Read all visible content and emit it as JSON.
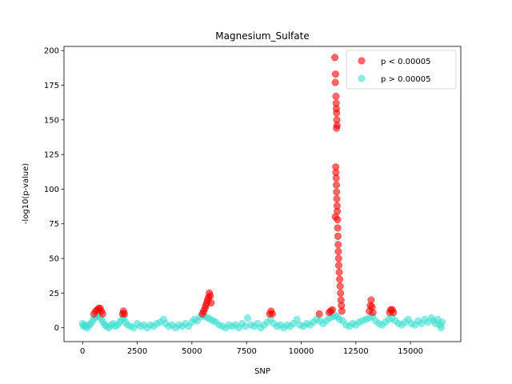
{
  "chart_data": {
    "type": "scatter",
    "title": "Magnesium_Sulfate",
    "xlabel": "SNP",
    "ylabel": "-log10(p-value)",
    "xlim": [
      -850,
      17300
    ],
    "ylim": [
      -10,
      203
    ],
    "xticks": [
      0,
      2500,
      5000,
      7500,
      10000,
      12500,
      15000
    ],
    "yticks": [
      0,
      25,
      50,
      75,
      100,
      125,
      150,
      175,
      200
    ],
    "grid": false,
    "legend_position": "upper-right",
    "colors": {
      "significant": "#ff0000",
      "nonsignificant": "#40e0d0"
    },
    "series": [
      {
        "name": "p < 0.00005",
        "color": "#ff0000",
        "points": [
          [
            520,
            10
          ],
          [
            600,
            12
          ],
          [
            680,
            13
          ],
          [
            740,
            14
          ],
          [
            800,
            14
          ],
          [
            860,
            12
          ],
          [
            920,
            10
          ],
          [
            1830,
            10
          ],
          [
            1870,
            12
          ],
          [
            1910,
            10
          ],
          [
            5480,
            10
          ],
          [
            5540,
            12
          ],
          [
            5600,
            14
          ],
          [
            5640,
            16
          ],
          [
            5680,
            18
          ],
          [
            5720,
            20
          ],
          [
            5760,
            22
          ],
          [
            5800,
            25
          ],
          [
            5840,
            23
          ],
          [
            5880,
            18
          ],
          [
            8560,
            10
          ],
          [
            8620,
            12
          ],
          [
            8680,
            10
          ],
          [
            10830,
            10
          ],
          [
            11280,
            11
          ],
          [
            11350,
            12
          ],
          [
            11420,
            13
          ],
          [
            11540,
            195
          ],
          [
            11570,
            183
          ],
          [
            11560,
            177
          ],
          [
            11590,
            167
          ],
          [
            11600,
            162
          ],
          [
            11610,
            158
          ],
          [
            11620,
            155
          ],
          [
            11630,
            150
          ],
          [
            11640,
            146
          ],
          [
            11615,
            144
          ],
          [
            11580,
            116
          ],
          [
            11590,
            112
          ],
          [
            11600,
            108
          ],
          [
            11610,
            103
          ],
          [
            11620,
            98
          ],
          [
            11630,
            93
          ],
          [
            11640,
            88
          ],
          [
            11650,
            84
          ],
          [
            11560,
            80
          ],
          [
            11660,
            78
          ],
          [
            11670,
            72
          ],
          [
            11680,
            66
          ],
          [
            11690,
            60
          ],
          [
            11700,
            55
          ],
          [
            11710,
            50
          ],
          [
            11720,
            45
          ],
          [
            11740,
            40
          ],
          [
            11760,
            35
          ],
          [
            11780,
            30
          ],
          [
            11800,
            25
          ],
          [
            11820,
            20
          ],
          [
            11840,
            16
          ],
          [
            11860,
            12
          ],
          [
            13120,
            12
          ],
          [
            13160,
            16
          ],
          [
            13200,
            20
          ],
          [
            13240,
            15
          ],
          [
            13280,
            11
          ],
          [
            14050,
            11
          ],
          [
            14100,
            13
          ],
          [
            14160,
            13
          ],
          [
            14220,
            11
          ]
        ]
      },
      {
        "name": "p > 0.00005",
        "color": "#40e0d0",
        "points": [
          [
            0,
            3
          ],
          [
            40,
            1
          ],
          [
            80,
            2
          ],
          [
            150,
            1
          ],
          [
            220,
            0
          ],
          [
            300,
            2
          ],
          [
            380,
            3
          ],
          [
            460,
            5
          ],
          [
            540,
            7
          ],
          [
            620,
            8
          ],
          [
            700,
            9
          ],
          [
            780,
            8
          ],
          [
            860,
            6
          ],
          [
            940,
            4
          ],
          [
            1020,
            2
          ],
          [
            1100,
            1
          ],
          [
            1200,
            0
          ],
          [
            1300,
            2
          ],
          [
            1400,
            3
          ],
          [
            1500,
            1
          ],
          [
            1600,
            2
          ],
          [
            1700,
            4
          ],
          [
            1800,
            6
          ],
          [
            1880,
            7
          ],
          [
            1960,
            4
          ],
          [
            2060,
            2
          ],
          [
            2200,
            1
          ],
          [
            2340,
            0
          ],
          [
            2500,
            3
          ],
          [
            2650,
            1
          ],
          [
            2800,
            2
          ],
          [
            2950,
            0
          ],
          [
            3100,
            2
          ],
          [
            3250,
            1
          ],
          [
            3400,
            3
          ],
          [
            3550,
            4
          ],
          [
            3700,
            6
          ],
          [
            3800,
            3
          ],
          [
            3950,
            1
          ],
          [
            4100,
            2
          ],
          [
            4250,
            0
          ],
          [
            4400,
            2
          ],
          [
            4550,
            1
          ],
          [
            4700,
            3
          ],
          [
            4850,
            1
          ],
          [
            5000,
            4
          ],
          [
            5120,
            6
          ],
          [
            5250,
            5
          ],
          [
            5380,
            8
          ],
          [
            5500,
            9
          ],
          [
            5620,
            8
          ],
          [
            5740,
            7
          ],
          [
            5860,
            6
          ],
          [
            5980,
            5
          ],
          [
            6100,
            4
          ],
          [
            6250,
            2
          ],
          [
            6400,
            1
          ],
          [
            6550,
            0
          ],
          [
            6700,
            2
          ],
          [
            6850,
            1
          ],
          [
            7000,
            2
          ],
          [
            7150,
            0
          ],
          [
            7300,
            3
          ],
          [
            7450,
            1
          ],
          [
            7550,
            7
          ],
          [
            7700,
            2
          ],
          [
            7850,
            1
          ],
          [
            8000,
            3
          ],
          [
            8150,
            0
          ],
          [
            8300,
            2
          ],
          [
            8450,
            4
          ],
          [
            8600,
            6
          ],
          [
            8750,
            3
          ],
          [
            8900,
            1
          ],
          [
            9050,
            2
          ],
          [
            9200,
            0
          ],
          [
            9350,
            2
          ],
          [
            9500,
            1
          ],
          [
            9650,
            3
          ],
          [
            9800,
            6
          ],
          [
            9950,
            2
          ],
          [
            10100,
            1
          ],
          [
            10250,
            3
          ],
          [
            10400,
            2
          ],
          [
            10550,
            4
          ],
          [
            10700,
            6
          ],
          [
            10850,
            5
          ],
          [
            11000,
            3
          ],
          [
            11150,
            5
          ],
          [
            11300,
            7
          ],
          [
            11450,
            8
          ],
          [
            11550,
            9
          ],
          [
            11650,
            8
          ],
          [
            11750,
            6
          ],
          [
            11900,
            5
          ],
          [
            12050,
            2
          ],
          [
            12200,
            1
          ],
          [
            12350,
            3
          ],
          [
            12500,
            2
          ],
          [
            12650,
            4
          ],
          [
            12800,
            5
          ],
          [
            12950,
            6
          ],
          [
            13100,
            7
          ],
          [
            13250,
            8
          ],
          [
            13400,
            5
          ],
          [
            13550,
            3
          ],
          [
            13700,
            2
          ],
          [
            13850,
            4
          ],
          [
            14000,
            6
          ],
          [
            14150,
            7
          ],
          [
            14300,
            5
          ],
          [
            14450,
            3
          ],
          [
            14600,
            2
          ],
          [
            14750,
            4
          ],
          [
            14900,
            6
          ],
          [
            15050,
            3
          ],
          [
            15200,
            2
          ],
          [
            15350,
            5
          ],
          [
            15500,
            3
          ],
          [
            15650,
            6
          ],
          [
            15800,
            4
          ],
          [
            15950,
            7
          ],
          [
            16050,
            5
          ],
          [
            16150,
            3
          ],
          [
            16250,
            6
          ],
          [
            16350,
            2
          ],
          [
            16400,
            0
          ],
          [
            16450,
            4
          ]
        ]
      }
    ]
  }
}
